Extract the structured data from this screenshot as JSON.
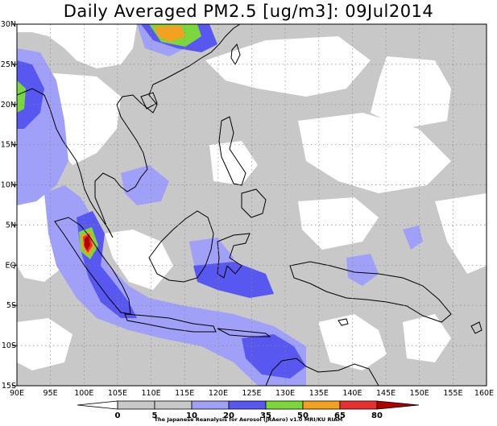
{
  "title": "Daily Averaged PM2.5 [ug/m3]: 09Jul2014",
  "map": {
    "lat_ticks": [
      "30N",
      "25N",
      "20N",
      "15N",
      "10N",
      "5N",
      "EQ",
      "5S",
      "10S",
      "15S"
    ],
    "lon_ticks": [
      "90E",
      "95E",
      "100E",
      "105E",
      "110E",
      "115E",
      "120E",
      "125E",
      "130E",
      "135E",
      "140E",
      "145E",
      "150E",
      "155E",
      "160E"
    ],
    "region": {
      "lon_min": 90,
      "lon_max": 160,
      "lat_min": -15,
      "lat_max": 30
    },
    "grid": "dotted",
    "coastline_color": "#000000"
  },
  "colorbar": {
    "labels": [
      "0",
      "5",
      "10",
      "20",
      "35",
      "50",
      "65",
      "80"
    ],
    "colors": [
      "#ffffff",
      "#c8c8c8",
      "#a0a0f8",
      "#5858f0",
      "#7ad83c",
      "#f4a020",
      "#e83030",
      "#b00000"
    ],
    "credit": "The Japanese Reanalysis for Aerosol (JRAero) v1.0 MRI/KU RIAM"
  }
}
